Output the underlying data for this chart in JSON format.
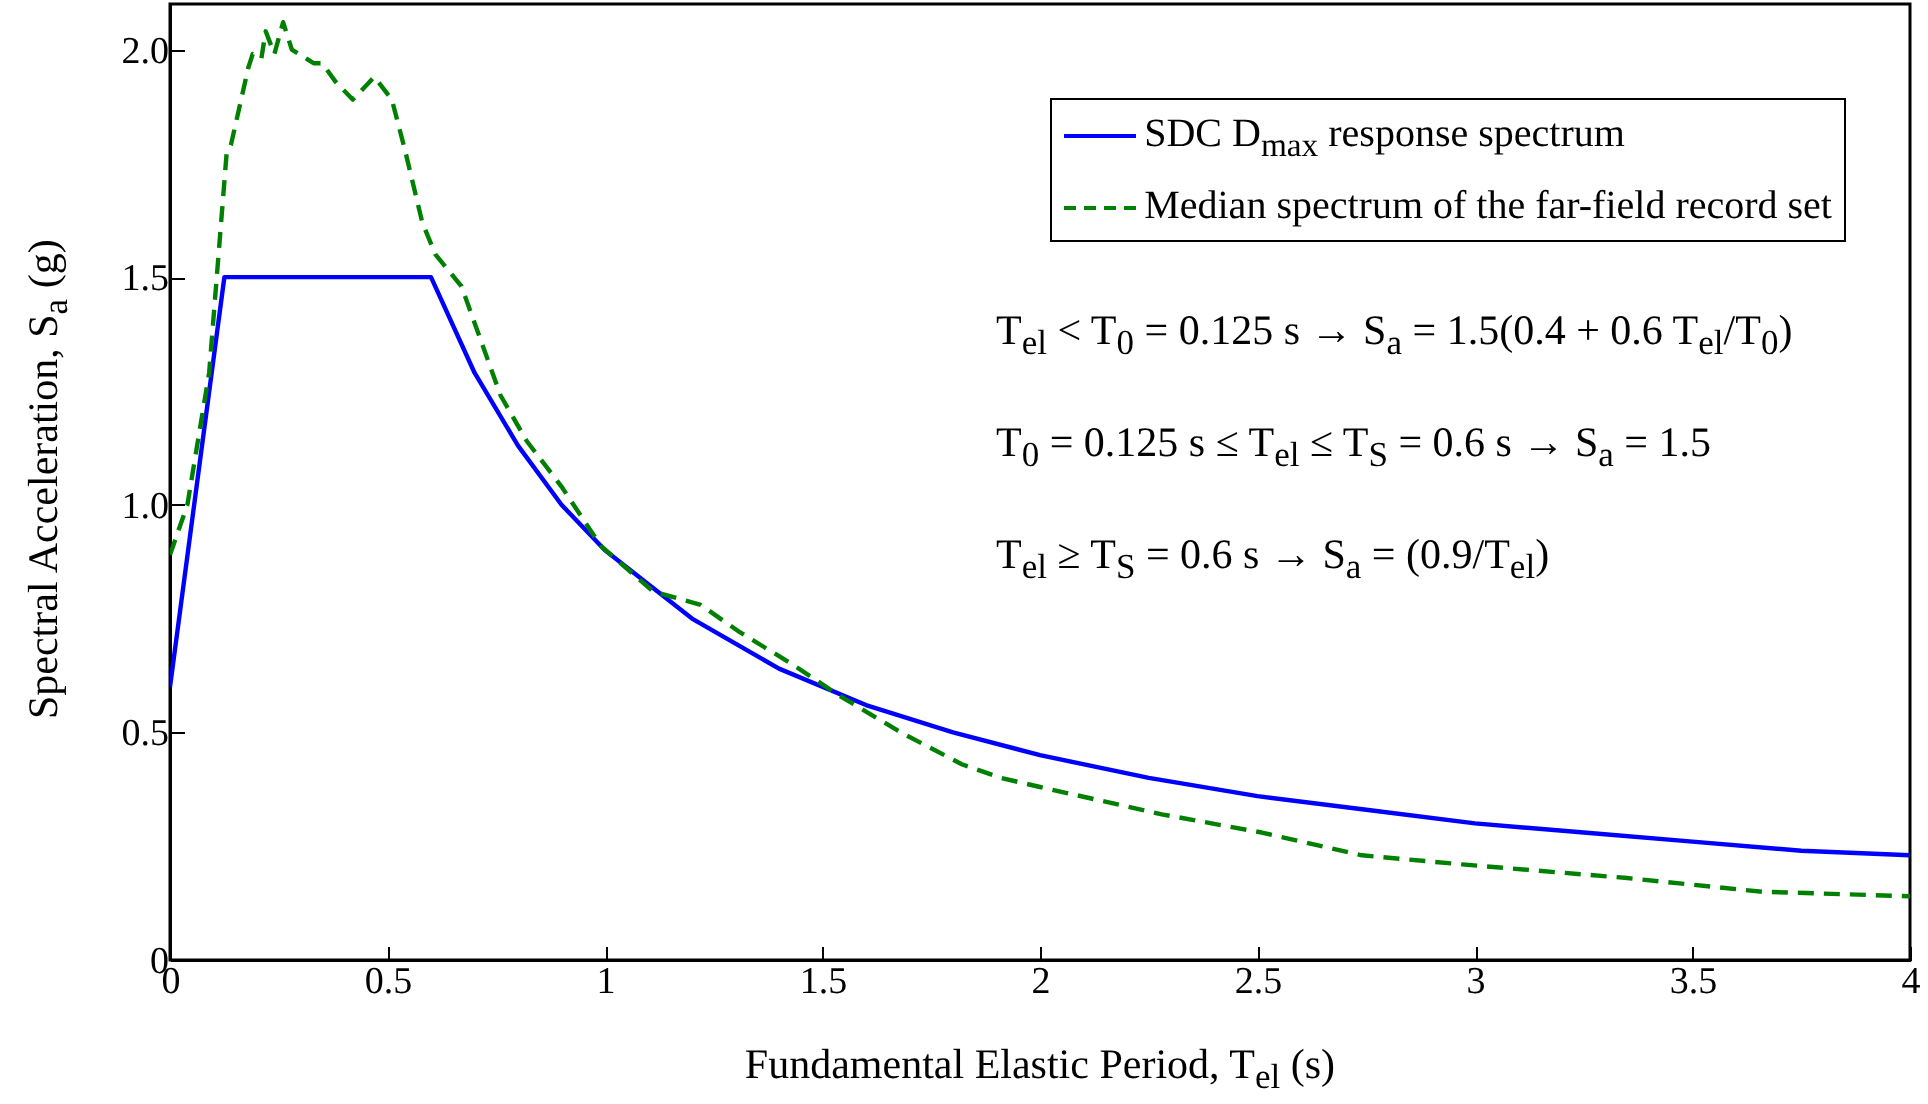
{
  "chart_data": {
    "type": "line",
    "xlabel": "Fundamental Elastic Period, T$_{el}$ (s)",
    "ylabel": "Spectral Acceleration, S$_{a}$ (g)",
    "xlim": [
      0,
      4
    ],
    "xticks": [
      0,
      0.5,
      1,
      1.5,
      2,
      2.5,
      3,
      3.5,
      4
    ],
    "ylim": [
      0,
      2.1
    ],
    "yticks": [
      0,
      {
        "value": 0.5,
        "label": "0.5"
      },
      {
        "value": 1,
        "label": "1.0"
      },
      {
        "value": 1.5,
        "label": "1.5"
      },
      {
        "value": 2,
        "label": "2.0"
      }
    ],
    "legend": "top right",
    "grid": false,
    "annotations": [
      "T$_{el}$ < T$_{0}$ = 0.125 s → S$_{a}$ = 1.5(0.4 + 0.6 T$_{el}$/T$_{0}$)",
      "T$_{0}$ = 0.125 s ≤ T$_{el}$ ≤ T$_{S}$ = 0.6 s → S$_{a}$ = 1.5",
      "T$_{el}$ ≥ T$_{S}$ = 0.6 s → S$_{a}$ = (0.9/T$_{el}$)"
    ],
    "series": [
      {
        "name": "SDC D$_{max}$ response spectrum",
        "color": "#0000ff",
        "line_style": "solid",
        "x": [
          0,
          0.125,
          0.6,
          0.7,
          0.8,
          0.9,
          1.0,
          1.2,
          1.4,
          1.6,
          1.8,
          2.0,
          2.25,
          2.5,
          2.75,
          3.0,
          3.25,
          3.5,
          3.75,
          4.0
        ],
        "values": [
          0.6,
          1.5,
          1.5,
          1.29,
          1.13,
          1.0,
          0.9,
          0.75,
          0.64,
          0.56,
          0.5,
          0.45,
          0.4,
          0.36,
          0.33,
          0.3,
          0.28,
          0.26,
          0.24,
          0.23
        ]
      },
      {
        "name": "Median spectrum of the far-field record set",
        "color": "#008000",
        "line_style": "dashed",
        "x": [
          0.0,
          0.04,
          0.09,
          0.13,
          0.14,
          0.18,
          0.19,
          0.21,
          0.22,
          0.24,
          0.26,
          0.28,
          0.33,
          0.35,
          0.38,
          0.42,
          0.47,
          0.51,
          0.54,
          0.58,
          0.61,
          0.67,
          0.7,
          0.76,
          0.82,
          0.9,
          0.99,
          1.11,
          1.22,
          1.31,
          1.43,
          1.54,
          1.68,
          1.82,
          1.91,
          2.0,
          2.28,
          2.51,
          2.74,
          2.97,
          3.35,
          3.66,
          4.0
        ],
        "values": [
          0.89,
          1.0,
          1.29,
          1.77,
          1.79,
          1.96,
          1.99,
          1.98,
          2.04,
          1.99,
          2.06,
          2.0,
          1.97,
          1.97,
          1.93,
          1.89,
          1.94,
          1.89,
          1.78,
          1.62,
          1.55,
          1.48,
          1.4,
          1.24,
          1.14,
          1.04,
          0.91,
          0.81,
          0.78,
          0.72,
          0.65,
          0.58,
          0.5,
          0.43,
          0.4,
          0.38,
          0.32,
          0.28,
          0.23,
          0.21,
          0.18,
          0.15,
          0.14
        ]
      }
    ]
  }
}
